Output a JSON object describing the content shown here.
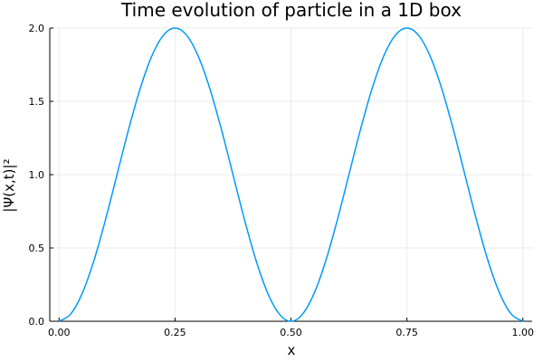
{
  "chart_data": {
    "type": "line",
    "title": "Time evolution of particle in a 1D box",
    "xlabel": "x",
    "ylabel": "|Ψ(x,t)|²",
    "xlim": [
      -0.02,
      1.02
    ],
    "ylim": [
      0,
      2
    ],
    "xticks": [
      0.0,
      0.25,
      0.5,
      0.75,
      1.0
    ],
    "xtick_labels": [
      "0.00",
      "0.25",
      "0.50",
      "0.75",
      "1.00"
    ],
    "yticks": [
      0.0,
      0.5,
      1.0,
      1.5,
      2.0
    ],
    "ytick_labels": [
      "0.0",
      "0.5",
      "1.0",
      "1.5",
      "2.0"
    ],
    "grid": true,
    "legend": "none",
    "series": [
      {
        "color": "#009AFA",
        "x": [
          0.0,
          0.025,
          0.05,
          0.075,
          0.1,
          0.125,
          0.15,
          0.175,
          0.2,
          0.225,
          0.25,
          0.275,
          0.3,
          0.325,
          0.35,
          0.375,
          0.4,
          0.425,
          0.45,
          0.475,
          0.5,
          0.525,
          0.55,
          0.575,
          0.6,
          0.625,
          0.65,
          0.675,
          0.7,
          0.725,
          0.75,
          0.775,
          0.8,
          0.825,
          0.85,
          0.875,
          0.9,
          0.925,
          0.95,
          0.975,
          1.0
        ],
        "y": [
          0.0,
          0.049,
          0.191,
          0.412,
          0.691,
          1.0,
          1.309,
          1.588,
          1.809,
          1.951,
          2.0,
          1.951,
          1.809,
          1.588,
          1.309,
          1.0,
          0.691,
          0.412,
          0.191,
          0.049,
          0.0,
          0.049,
          0.191,
          0.412,
          0.691,
          1.0,
          1.309,
          1.588,
          1.809,
          1.951,
          2.0,
          1.951,
          1.809,
          1.588,
          1.309,
          1.0,
          0.691,
          0.412,
          0.191,
          0.049,
          0.0
        ]
      }
    ]
  }
}
